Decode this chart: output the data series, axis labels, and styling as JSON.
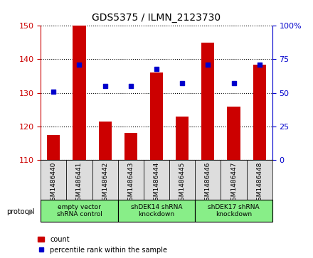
{
  "title": "GDS5375 / ILMN_2123730",
  "samples": [
    "GSM1486440",
    "GSM1486441",
    "GSM1486442",
    "GSM1486443",
    "GSM1486444",
    "GSM1486445",
    "GSM1486446",
    "GSM1486447",
    "GSM1486448"
  ],
  "count_values": [
    117.5,
    150,
    121.5,
    118,
    136,
    123,
    145,
    126,
    138.5
  ],
  "percentile_values": [
    51,
    71,
    55,
    55,
    68,
    57,
    71,
    57,
    71
  ],
  "ylim_left": [
    110,
    150
  ],
  "ylim_right": [
    0,
    100
  ],
  "yticks_left": [
    110,
    120,
    130,
    140,
    150
  ],
  "yticks_right": [
    0,
    25,
    50,
    75,
    100
  ],
  "group_spans": [
    [
      0,
      2,
      "empty vector\nshRNA control"
    ],
    [
      3,
      5,
      "shDEK14 shRNA\nknockdown"
    ],
    [
      6,
      8,
      "shDEK17 shRNA\nknockdown"
    ]
  ],
  "bar_color": "#cc0000",
  "dot_color": "#0000cc",
  "left_axis_color": "#cc0000",
  "right_axis_color": "#0000cc",
  "group_color": "#88ee88",
  "sample_box_color": "#dddddd"
}
